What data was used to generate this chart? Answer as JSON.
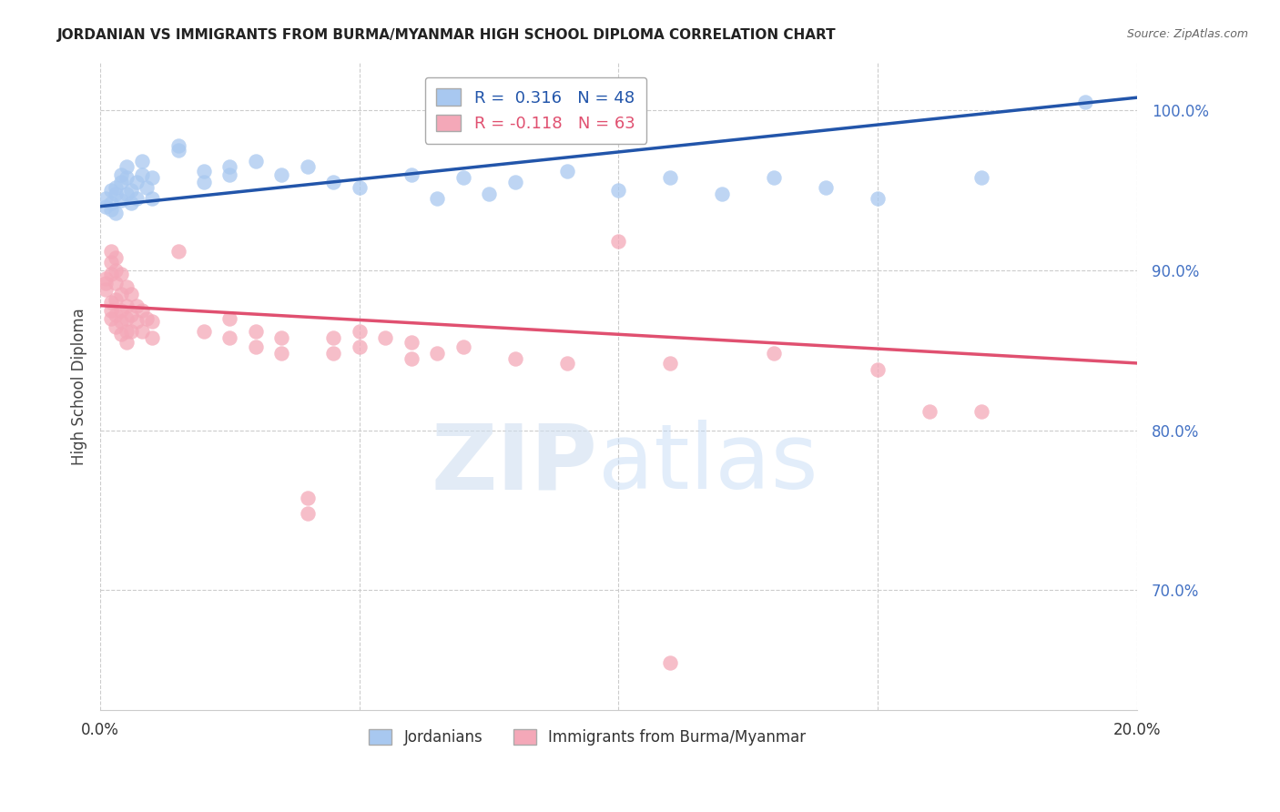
{
  "title": "JORDANIAN VS IMMIGRANTS FROM BURMA/MYANMAR HIGH SCHOOL DIPLOMA CORRELATION CHART",
  "source": "Source: ZipAtlas.com",
  "ylabel": "High School Diploma",
  "xmin": 0.0,
  "xmax": 0.2,
  "ymin": 0.625,
  "ymax": 1.03,
  "yticks": [
    0.7,
    0.8,
    0.9,
    1.0
  ],
  "xticks": [
    0.0,
    0.05,
    0.1,
    0.15,
    0.2
  ],
  "legend_labels": [
    "Jordanians",
    "Immigrants from Burma/Myanmar"
  ],
  "blue_R": 0.316,
  "blue_N": 48,
  "pink_R": -0.118,
  "pink_N": 63,
  "blue_color": "#A8C8F0",
  "pink_color": "#F4A8B8",
  "blue_line_color": "#2255AA",
  "pink_line_color": "#E05070",
  "watermark_zip": "ZIP",
  "watermark_atlas": "atlas",
  "blue_line_x": [
    0.0,
    0.2
  ],
  "blue_line_y": [
    0.94,
    1.008
  ],
  "pink_line_x": [
    0.0,
    0.2
  ],
  "pink_line_y": [
    0.878,
    0.842
  ],
  "blue_points": [
    [
      0.001,
      0.94
    ],
    [
      0.001,
      0.945
    ],
    [
      0.002,
      0.938
    ],
    [
      0.002,
      0.942
    ],
    [
      0.002,
      0.95
    ],
    [
      0.003,
      0.952
    ],
    [
      0.003,
      0.948
    ],
    [
      0.003,
      0.936
    ],
    [
      0.004,
      0.944
    ],
    [
      0.004,
      0.955
    ],
    [
      0.004,
      0.96
    ],
    [
      0.005,
      0.948
    ],
    [
      0.005,
      0.958
    ],
    [
      0.005,
      0.965
    ],
    [
      0.006,
      0.942
    ],
    [
      0.006,
      0.95
    ],
    [
      0.007,
      0.955
    ],
    [
      0.007,
      0.945
    ],
    [
      0.008,
      0.96
    ],
    [
      0.008,
      0.968
    ],
    [
      0.009,
      0.952
    ],
    [
      0.01,
      0.945
    ],
    [
      0.01,
      0.958
    ],
    [
      0.015,
      0.975
    ],
    [
      0.015,
      0.978
    ],
    [
      0.02,
      0.962
    ],
    [
      0.02,
      0.955
    ],
    [
      0.025,
      0.96
    ],
    [
      0.025,
      0.965
    ],
    [
      0.03,
      0.968
    ],
    [
      0.035,
      0.96
    ],
    [
      0.04,
      0.965
    ],
    [
      0.045,
      0.955
    ],
    [
      0.05,
      0.952
    ],
    [
      0.06,
      0.96
    ],
    [
      0.065,
      0.945
    ],
    [
      0.07,
      0.958
    ],
    [
      0.075,
      0.948
    ],
    [
      0.08,
      0.955
    ],
    [
      0.09,
      0.962
    ],
    [
      0.1,
      0.95
    ],
    [
      0.11,
      0.958
    ],
    [
      0.12,
      0.948
    ],
    [
      0.13,
      0.958
    ],
    [
      0.14,
      0.952
    ],
    [
      0.15,
      0.945
    ],
    [
      0.17,
      0.958
    ],
    [
      0.19,
      1.005
    ]
  ],
  "pink_points": [
    [
      0.001,
      0.895
    ],
    [
      0.001,
      0.892
    ],
    [
      0.001,
      0.888
    ],
    [
      0.002,
      0.912
    ],
    [
      0.002,
      0.905
    ],
    [
      0.002,
      0.898
    ],
    [
      0.002,
      0.88
    ],
    [
      0.002,
      0.875
    ],
    [
      0.002,
      0.87
    ],
    [
      0.003,
      0.908
    ],
    [
      0.003,
      0.9
    ],
    [
      0.003,
      0.892
    ],
    [
      0.003,
      0.882
    ],
    [
      0.003,
      0.872
    ],
    [
      0.003,
      0.865
    ],
    [
      0.004,
      0.898
    ],
    [
      0.004,
      0.885
    ],
    [
      0.004,
      0.875
    ],
    [
      0.004,
      0.868
    ],
    [
      0.004,
      0.86
    ],
    [
      0.005,
      0.89
    ],
    [
      0.005,
      0.878
    ],
    [
      0.005,
      0.87
    ],
    [
      0.005,
      0.862
    ],
    [
      0.005,
      0.855
    ],
    [
      0.006,
      0.885
    ],
    [
      0.006,
      0.872
    ],
    [
      0.006,
      0.862
    ],
    [
      0.007,
      0.878
    ],
    [
      0.007,
      0.868
    ],
    [
      0.008,
      0.875
    ],
    [
      0.008,
      0.862
    ],
    [
      0.009,
      0.87
    ],
    [
      0.01,
      0.868
    ],
    [
      0.01,
      0.858
    ],
    [
      0.015,
      0.912
    ],
    [
      0.02,
      0.862
    ],
    [
      0.025,
      0.87
    ],
    [
      0.025,
      0.858
    ],
    [
      0.03,
      0.862
    ],
    [
      0.03,
      0.852
    ],
    [
      0.035,
      0.858
    ],
    [
      0.035,
      0.848
    ],
    [
      0.04,
      0.758
    ],
    [
      0.04,
      0.748
    ],
    [
      0.045,
      0.858
    ],
    [
      0.045,
      0.848
    ],
    [
      0.05,
      0.862
    ],
    [
      0.05,
      0.852
    ],
    [
      0.055,
      0.858
    ],
    [
      0.06,
      0.855
    ],
    [
      0.06,
      0.845
    ],
    [
      0.065,
      0.848
    ],
    [
      0.07,
      0.852
    ],
    [
      0.08,
      0.845
    ],
    [
      0.09,
      0.842
    ],
    [
      0.1,
      0.918
    ],
    [
      0.11,
      0.842
    ],
    [
      0.13,
      0.848
    ],
    [
      0.15,
      0.838
    ],
    [
      0.16,
      0.812
    ],
    [
      0.17,
      0.812
    ],
    [
      0.11,
      0.655
    ]
  ]
}
